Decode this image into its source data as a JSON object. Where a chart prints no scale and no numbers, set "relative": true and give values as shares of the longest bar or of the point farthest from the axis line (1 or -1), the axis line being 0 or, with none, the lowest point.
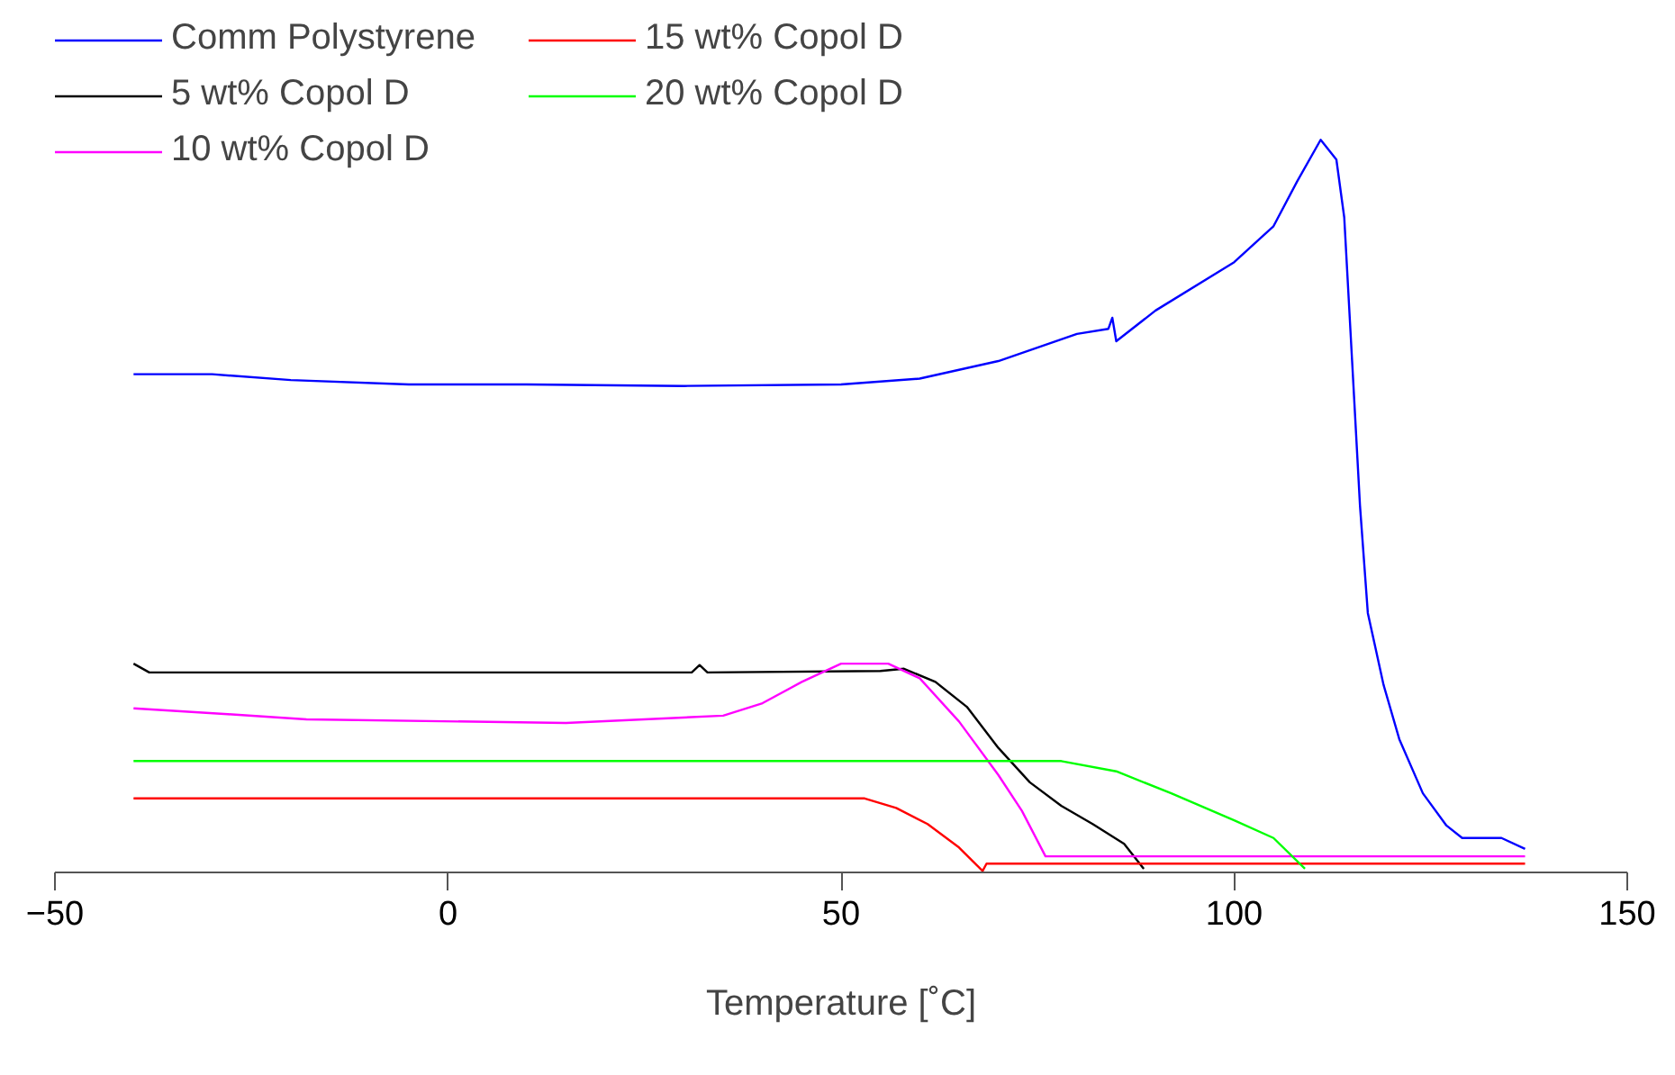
{
  "chart_data": {
    "type": "line",
    "relative": true,
    "xlabel": "Temperature [˚C]",
    "xlim": [
      -50,
      150
    ],
    "xticks": [
      -50,
      0,
      50,
      100,
      150
    ],
    "grid": false,
    "legend": "top left",
    "marker": "none",
    "line_style": "solid",
    "series": [
      {
        "name": "Comm Polystyrene",
        "color": "#0000ff",
        "x": [
          -40,
          -30,
          -20,
          -5,
          10,
          30,
          50,
          60,
          70,
          80,
          84,
          84.5,
          85,
          90,
          100,
          105,
          108,
          111,
          113,
          114,
          115,
          116,
          117,
          119,
          121,
          124,
          127,
          129,
          134,
          137
        ],
        "values": [
          0.68,
          0.68,
          0.672,
          0.666,
          0.666,
          0.664,
          0.666,
          0.674,
          0.698,
          0.735,
          0.742,
          0.757,
          0.725,
          0.767,
          0.833,
          0.882,
          0.943,
          1,
          0.973,
          0.894,
          0.698,
          0.501,
          0.354,
          0.256,
          0.182,
          0.108,
          0.064,
          0.047,
          0.047,
          0.032
        ]
      },
      {
        "name": "5 wt% Copol D",
        "color": "#000000",
        "x": [
          -40,
          -38,
          31,
          32,
          33,
          55,
          58,
          62,
          66,
          70,
          74,
          78,
          82,
          86,
          88.5
        ],
        "values": [
          0.285,
          0.273,
          0.273,
          0.283,
          0.273,
          0.275,
          0.278,
          0.26,
          0.226,
          0.17,
          0.123,
          0.091,
          0.066,
          0.039,
          0.005
        ]
      },
      {
        "name": "10 wt% Copol D",
        "color": "#ff00ff",
        "x": [
          -40,
          -28,
          -18,
          15,
          35,
          40,
          45,
          50,
          56,
          60,
          65,
          70,
          73,
          76,
          137
        ],
        "values": [
          0.224,
          0.216,
          0.209,
          0.204,
          0.214,
          0.231,
          0.26,
          0.285,
          0.285,
          0.265,
          0.206,
          0.133,
          0.084,
          0.022,
          0.022
        ]
      },
      {
        "name": "15 wt% Copol D",
        "color": "#ff0000",
        "x": [
          -40,
          53,
          57,
          61,
          65,
          68,
          68.5,
          137
        ],
        "values": [
          0.101,
          0.101,
          0.088,
          0.066,
          0.034,
          0.002,
          0.012,
          0.012
        ]
      },
      {
        "name": "20 wt% Copol D",
        "color": "#00ff00",
        "x": [
          -40,
          78,
          85,
          92,
          100,
          105,
          109
        ],
        "values": [
          0.152,
          0.152,
          0.138,
          0.108,
          0.071,
          0.047,
          0.005
        ]
      }
    ]
  }
}
